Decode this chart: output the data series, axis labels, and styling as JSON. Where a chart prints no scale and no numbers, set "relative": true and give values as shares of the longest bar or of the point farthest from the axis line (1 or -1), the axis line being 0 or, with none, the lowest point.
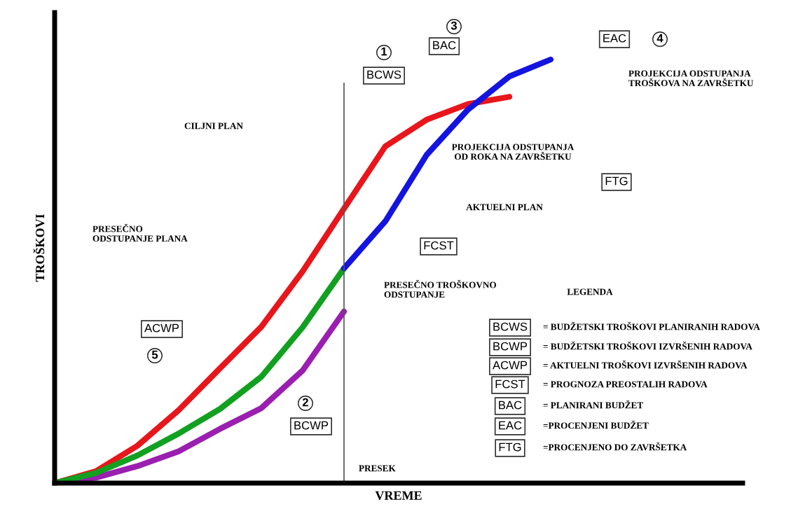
{
  "chart_data": {
    "type": "line",
    "relative": true,
    "xlabel": "VREME",
    "ylabel": "TROŠKOVI",
    "tick_labels": false,
    "marker": "none",
    "line_style": "solid",
    "categories": [
      null,
      null,
      null,
      null,
      null,
      null,
      null,
      null,
      null,
      null,
      null,
      null,
      null
    ],
    "series": [
      {
        "color": "#e8161b",
        "values": [
          0,
          0.028,
          0.088,
          0.172,
          0.271,
          0.369,
          0.5,
          0.648,
          0.795,
          0.858,
          0.895,
          0.912,
          null
        ]
      },
      {
        "color": "#9a1fb0",
        "values": [
          0,
          0.013,
          0.04,
          0.075,
          0.128,
          0.177,
          0.266,
          0.405,
          null,
          null,
          null,
          null,
          null
        ]
      },
      {
        "color": "#12a020",
        "values": [
          0,
          0.024,
          0.065,
          0.117,
          0.175,
          0.251,
          0.368,
          0.507,
          null,
          null,
          null,
          null,
          null
        ]
      },
      {
        "color": "#1414e0",
        "values": [
          null,
          null,
          null,
          null,
          null,
          null,
          null,
          0.507,
          0.618,
          0.775,
          0.882,
          0.96,
          1.0
        ]
      }
    ],
    "annotations": [
      "1",
      "BCWS",
      "3",
      "BAC",
      "EAC",
      "4",
      "CILJNI PLAN",
      "PROJEKCIJA ODSTUPANJA\nTROŠKOVA NA ZAVRŠETKU",
      "PROJEKCIJA ODSTUPANJA\nOD ROKA NA ZAVRŠETKU",
      "FTG",
      "AKTUELNI PLAN",
      "PRESEČNO\nODSTUPANJE PLANA",
      "FCST",
      "PRESEČNO TROŠKOVNO\nODSTUPANJE",
      "LEGENDA",
      "ACWP",
      "5",
      "2",
      "BCWP",
      "BCWS",
      "= BUDŽETSKI TROŠKOVI PLANIRANIH RADOVA",
      "BCWP",
      "= BUDŽETSKI TROŠKOVI IZVRŠENIH RADOVA",
      "ACWP",
      "= AKTUELNI TROŠKOVI IZVRŠENIH RADOVA",
      "FCST",
      "= PROGNOZA PREOSTALIH RADOVA",
      "BAC",
      "= PLANIRANI BUDŽET",
      "EAC",
      "=PROCENJENI BUDŽET",
      "FTG",
      "=PROCENJENO DO ZAVRŠETKA",
      "PRESEK"
    ]
  }
}
